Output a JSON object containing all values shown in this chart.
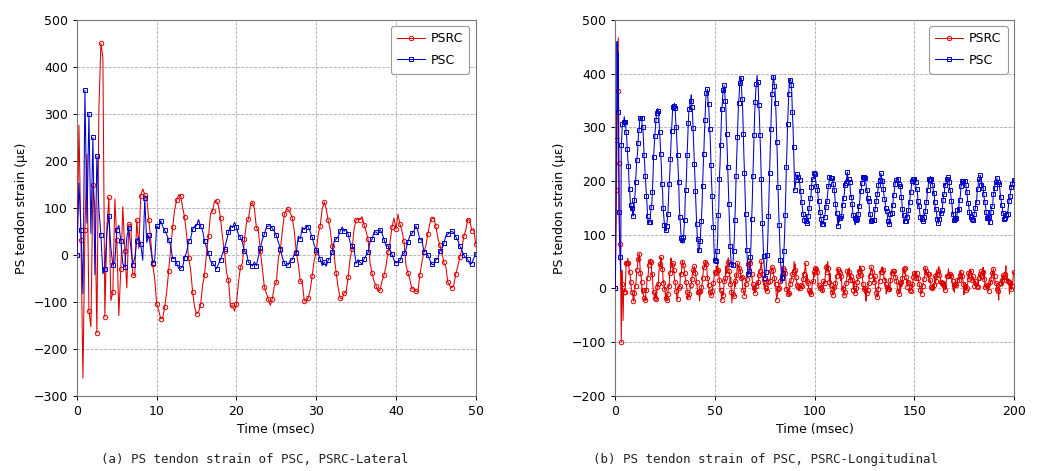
{
  "fig_width": 10.41,
  "fig_height": 4.71,
  "background_color": "#ffffff",
  "plot_a": {
    "xlabel": "Time (msec)",
    "ylabel": "PS tendon strain (με)",
    "xlim": [
      0,
      50
    ],
    "ylim": [
      -300,
      500
    ],
    "yticks": [
      -300,
      -200,
      -100,
      0,
      100,
      200,
      300,
      400,
      500
    ],
    "xticks": [
      0,
      10,
      20,
      30,
      40,
      50
    ],
    "caption": "(a) PS tendon strain of PSC, PSRC-Lateral",
    "legend_psrc": "PSRC",
    "legend_psc": "PSC",
    "psrc_color": "#dd0000",
    "psc_color": "#0000cc",
    "marker_psrc": "o",
    "marker_psc": "s"
  },
  "plot_b": {
    "xlabel": "Time (msec)",
    "ylabel": "PS tendon strain (με)",
    "xlim": [
      0,
      200
    ],
    "ylim": [
      -200,
      500
    ],
    "yticks": [
      -200,
      -100,
      0,
      100,
      200,
      300,
      400,
      500
    ],
    "xticks": [
      0,
      50,
      100,
      150,
      200
    ],
    "caption": "(b) PS tendon strain of PSC, PSRC-Longitudinal",
    "legend_psrc": "PSRC",
    "legend_psc": "PSC",
    "psrc_color": "#dd0000",
    "psc_color": "#0000cc",
    "marker_psrc": "o",
    "marker_psc": "s"
  }
}
